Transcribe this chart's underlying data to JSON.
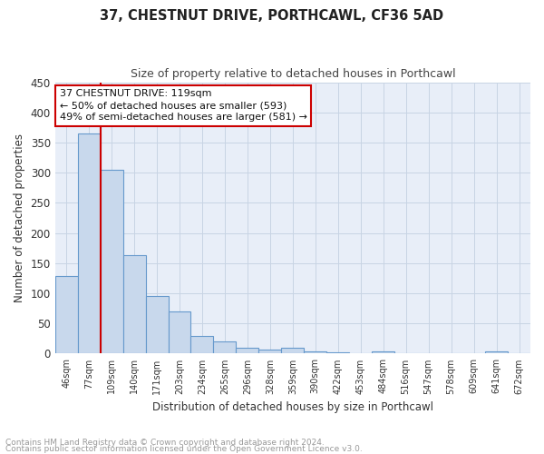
{
  "title1": "37, CHESTNUT DRIVE, PORTHCAWL, CF36 5AD",
  "title2": "Size of property relative to detached houses in Porthcawl",
  "xlabel": "Distribution of detached houses by size in Porthcawl",
  "ylabel": "Number of detached properties",
  "footnote1": "Contains HM Land Registry data © Crown copyright and database right 2024.",
  "footnote2": "Contains public sector information licensed under the Open Government Licence v3.0.",
  "bar_labels": [
    "46sqm",
    "77sqm",
    "109sqm",
    "140sqm",
    "171sqm",
    "203sqm",
    "234sqm",
    "265sqm",
    "296sqm",
    "328sqm",
    "359sqm",
    "390sqm",
    "422sqm",
    "453sqm",
    "484sqm",
    "516sqm",
    "547sqm",
    "578sqm",
    "609sqm",
    "641sqm",
    "672sqm"
  ],
  "bar_values": [
    128,
    365,
    305,
    163,
    95,
    70,
    30,
    20,
    10,
    7,
    9,
    4,
    2,
    0,
    3,
    0,
    0,
    0,
    0,
    4,
    0
  ],
  "bar_color": "#c8d8ec",
  "bar_edgecolor": "#6699cc",
  "grid_color": "#c8d4e4",
  "background_color": "#e8eef8",
  "vline_x_index": 1.5,
  "vline_color": "#cc0000",
  "annotation_text": "37 CHESTNUT DRIVE: 119sqm\n← 50% of detached houses are smaller (593)\n49% of semi-detached houses are larger (581) →",
  "annotation_box_facecolor": "#ffffff",
  "annotation_box_edgecolor": "#cc0000",
  "ylim": [
    0,
    450
  ],
  "yticks": [
    0,
    50,
    100,
    150,
    200,
    250,
    300,
    350,
    400,
    450
  ],
  "figwidth": 6.0,
  "figheight": 5.0,
  "dpi": 100
}
